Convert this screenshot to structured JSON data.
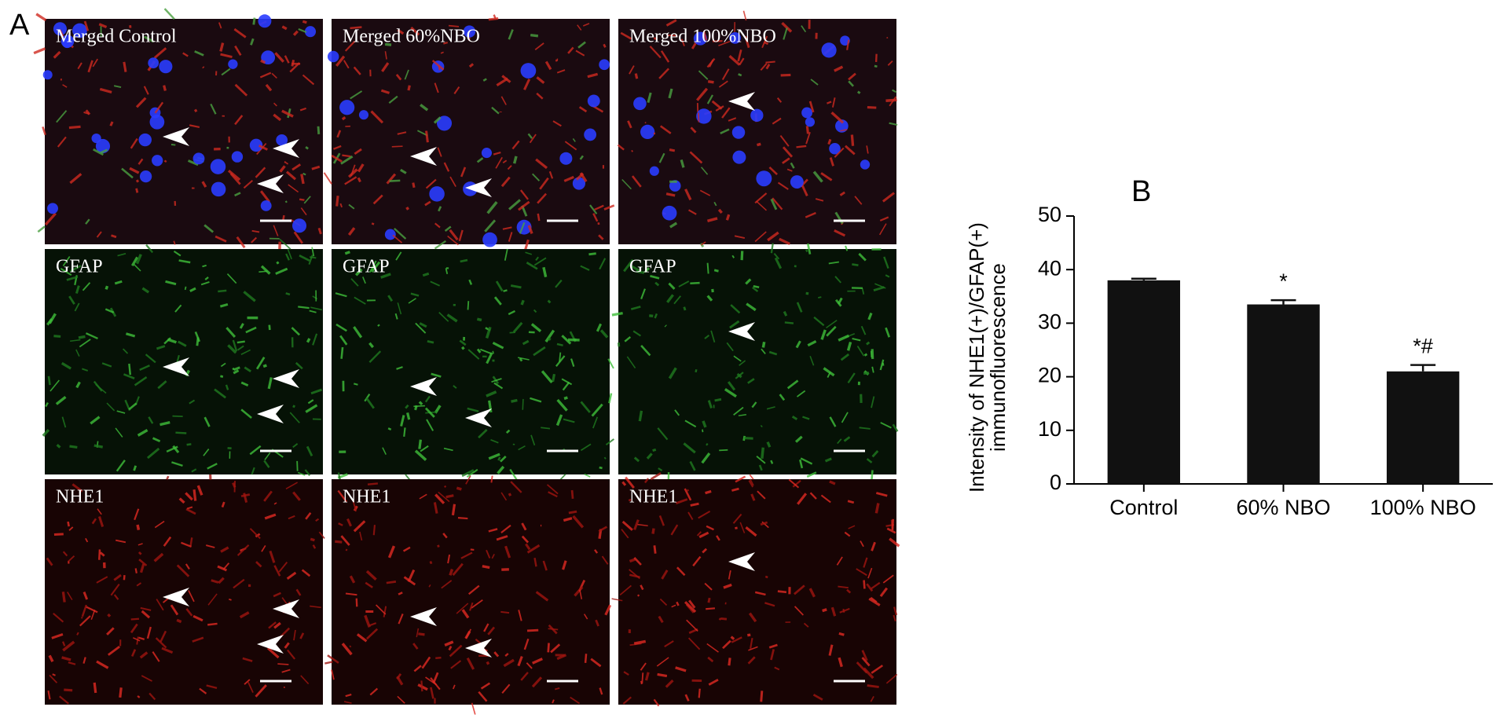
{
  "panel_a": {
    "label": "A",
    "panels": [
      [
        "Merged Control",
        "Merged  60%NBO",
        "Merged  100%NBO"
      ],
      [
        "GFAP",
        "GFAP",
        "GFAP"
      ],
      [
        "NHE1",
        "NHE1",
        "NHE1"
      ]
    ]
  },
  "chart_data": {
    "type": "bar",
    "panel_label": "B",
    "ylabel": [
      "Intensity of NHE1(+)/GFAP(+)",
      "immunofluorescence"
    ],
    "categories": [
      "Control",
      "60% NBO",
      "100% NBO"
    ],
    "values": [
      38,
      33.5,
      21
    ],
    "errors": [
      0.3,
      0.8,
      1.2
    ],
    "annotations": [
      null,
      "*",
      "*#"
    ],
    "color": "#111111",
    "ylim": [
      0,
      50
    ],
    "yticks": [
      0,
      10,
      20,
      30,
      40,
      50
    ]
  }
}
